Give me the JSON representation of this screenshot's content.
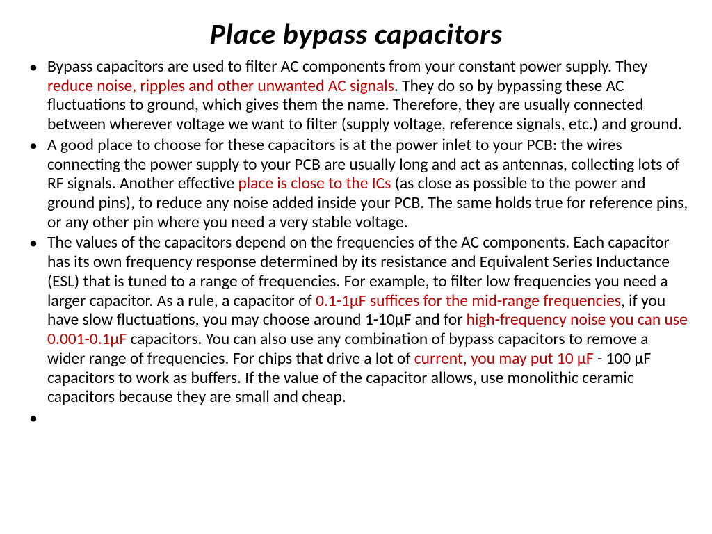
{
  "title": "Place bypass capacitors",
  "title_fontsize": 42,
  "title_style": "bold-italic",
  "body_fontsize": 23.5,
  "highlight_color": "#c00000",
  "text_color": "#000000",
  "background_color": "#ffffff",
  "bullets": [
    {
      "runs": [
        {
          "t": "Bypass capacitors are used to filter AC components from your constant power supply. They ",
          "hl": false
        },
        {
          "t": "reduce noise, ripples and other unwanted AC signals",
          "hl": true
        },
        {
          "t": ". They do so by bypassing these AC fluctuations to ground, which gives them the name. Therefore, they are usually connected between wherever voltage we want to filter (supply voltage, reference signals, etc.) and ground.",
          "hl": false
        }
      ]
    },
    {
      "runs": [
        {
          "t": "A good place to choose for these capacitors is at the power inlet to your PCB: the wires connecting the power supply to your PCB are usually long and act as antennas, collecting lots of RF signals. Another effective ",
          "hl": false
        },
        {
          "t": "place is close to the ICs",
          "hl": true
        },
        {
          "t": " (as close as possible to the power and ground pins), to reduce any noise added inside your PCB. The same holds true for reference pins, or any other pin where you need a very stable voltage.",
          "hl": false
        }
      ]
    },
    {
      "runs": [
        {
          "t": "The values of the capacitors depend on the frequencies of the AC components. Each capacitor has its own frequency response determined by its resistance and Equivalent Series Inductance (ESL) that is tuned to a range of frequencies. For example, to filter low frequencies you need a larger capacitor. As a rule, a capacitor of ",
          "hl": false
        },
        {
          "t": "0.1-1µF suffices for the mid-range frequencies",
          "hl": true
        },
        {
          "t": ", if you have slow fluctuations, you may choose around 1-10µF and for ",
          "hl": false
        },
        {
          "t": "high-frequency noise you can use 0.001-0.1µF",
          "hl": true
        },
        {
          "t": " capacitors. You can also use any combination of bypass capacitors to remove a wider range of frequencies. For chips that drive a lot of ",
          "hl": false
        },
        {
          "t": "current, you may put 10 µF",
          "hl": true
        },
        {
          "t": " - 100 µF capacitors to work as buffers. If the value of the capacitor allows, use monolithic ceramic capacitors because they are small and cheap.",
          "hl": false
        }
      ]
    },
    {
      "runs": []
    }
  ]
}
